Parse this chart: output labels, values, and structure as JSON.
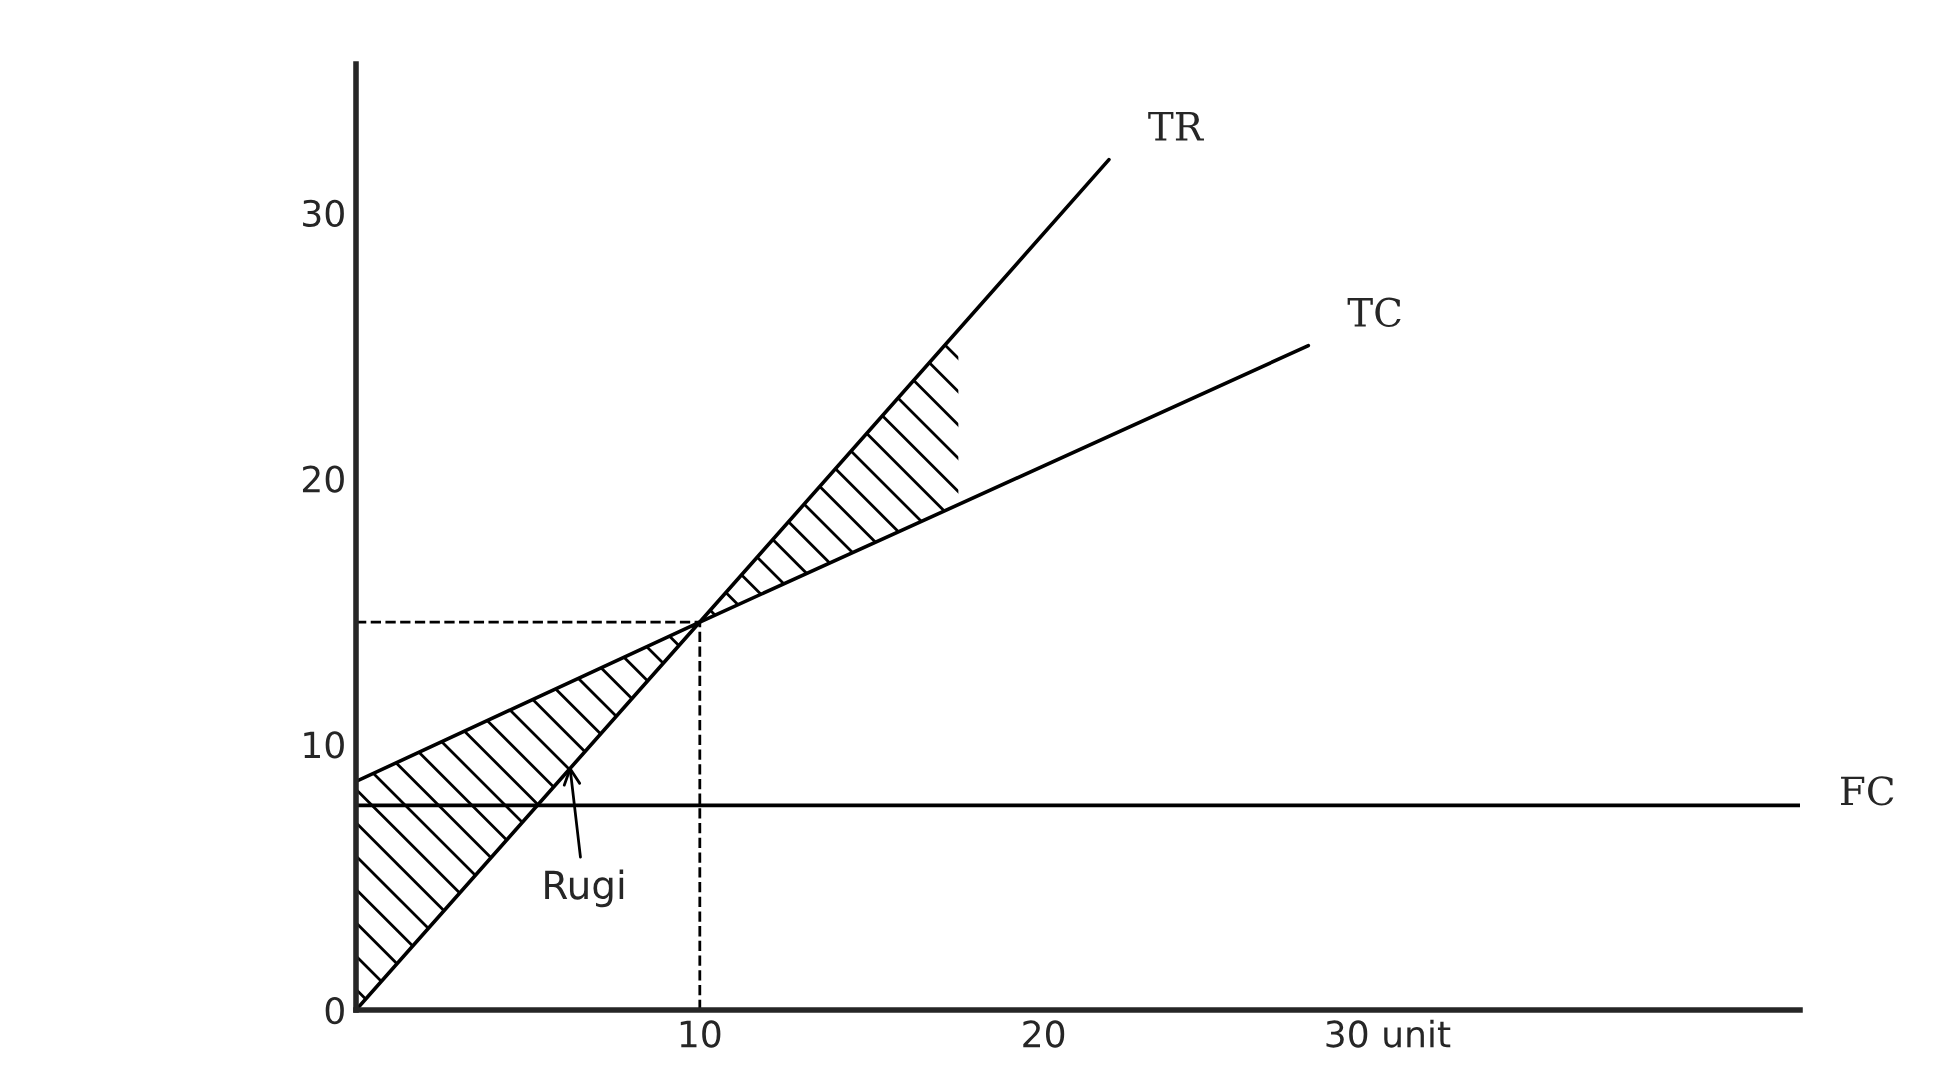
{
  "chart_data": {
    "type": "line",
    "series": [
      {
        "name": "TR",
        "color": "#000000",
        "x": [
          0,
          10,
          21.9
        ],
        "values": [
          0,
          14.6,
          32
        ]
      },
      {
        "name": "TC",
        "color": "#000000",
        "x": [
          0,
          10,
          27.7
        ],
        "values": [
          8.6,
          14.6,
          25
        ]
      },
      {
        "name": "FC",
        "color": "#000000",
        "x": [
          0,
          42
        ],
        "values": [
          7.7,
          7.7
        ]
      }
    ],
    "xlim": [
      0,
      42
    ],
    "ylim": [
      0,
      35.6
    ],
    "xticks": [
      10,
      20,
      {
        "value": 30,
        "label": "30 unit"
      }
    ],
    "yticks": [
      0,
      10,
      20,
      30
    ],
    "ref_lines": [
      {
        "axis": "x",
        "value": 10,
        "line_style": "dashed",
        "color": "#000000"
      },
      {
        "axis": "y",
        "value": 14.6,
        "line_style": "dashed",
        "color": "#000000"
      }
    ],
    "annotations": [
      {
        "text": "Rugi",
        "x": 6.2,
        "y": 9.4
      }
    ],
    "grid": false,
    "legend": false,
    "marker": "none",
    "line_style": "solid"
  }
}
